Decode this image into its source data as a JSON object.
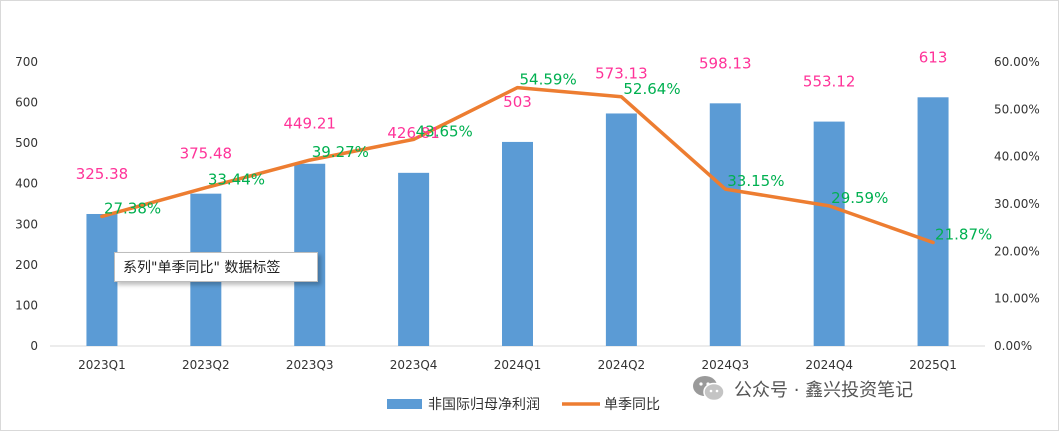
{
  "chart_data": {
    "type": "bar+line",
    "categories": [
      "2023Q1",
      "2023Q2",
      "2023Q3",
      "2023Q4",
      "2024Q1",
      "2024Q2",
      "2024Q3",
      "2024Q4",
      "2025Q1"
    ],
    "series": [
      {
        "name": "非国际归母净利润",
        "type": "bar",
        "axis": "left",
        "values": [
          325.38,
          375.48,
          449.21,
          426.81,
          503,
          573.13,
          598.13,
          553.12,
          613
        ],
        "labels": [
          "325.38",
          "375.48",
          "449.21",
          "426.81",
          "503",
          "573.13",
          "598.13",
          "553.12",
          "613"
        ],
        "color": "#5b9bd5",
        "label_color": "#ff3399"
      },
      {
        "name": "单季同比",
        "type": "line",
        "axis": "right",
        "values": [
          27.38,
          33.44,
          39.27,
          43.65,
          54.59,
          52.64,
          33.15,
          29.59,
          21.87
        ],
        "labels": [
          "27.38%",
          "33.44%",
          "39.27%",
          "43.65%",
          "54.59%",
          "52.64%",
          "33.15%",
          "29.59%",
          "21.87%"
        ],
        "color": "#ed7d31",
        "label_color": "#00b050"
      }
    ],
    "y_left": {
      "min": 0,
      "max": 700,
      "ticks": [
        "0",
        "100",
        "200",
        "300",
        "400",
        "500",
        "600",
        "700"
      ]
    },
    "y_right": {
      "min": 0,
      "max": 60,
      "ticks": [
        "0.00%",
        "10.00%",
        "20.00%",
        "30.00%",
        "40.00%",
        "50.00%",
        "60.00%"
      ]
    },
    "legend_position": "bottom",
    "grid": false
  },
  "tooltip_text": "系列\"单季同比\" 数据标签",
  "watermark": {
    "icon": "wechat-icon",
    "text": "公众号 · 鑫兴投资笔记"
  }
}
